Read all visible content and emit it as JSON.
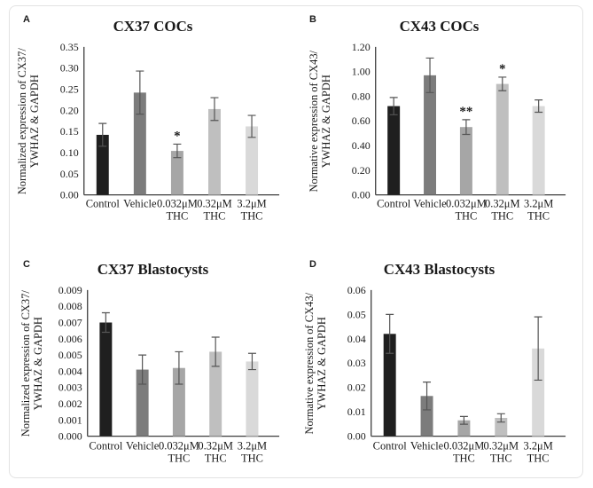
{
  "figure": {
    "background": "#ffffff",
    "border_color": "#e3e3e3",
    "axis_color": "#3d3d3d",
    "error_bar_color": "#555555",
    "text_color": "#1a1a1a",
    "bar_colors": [
      "#1f1f1f",
      "#7c7c7c",
      "#a6a6a6",
      "#bfbfbf",
      "#d9d9d9"
    ]
  },
  "chart_data": [
    {
      "type": "bar",
      "panel": "A",
      "title": "CX37 COCs",
      "ylabel": "Normalized expression of CX37/ YWHAZ & GAPDH",
      "ylabel_line1": "Normalized expression of CX37/",
      "ylabel_line2": "YWHAZ & GAPDH",
      "categories": [
        "Control",
        "Vehicle",
        "0.032μM THC",
        "0.32μM THC",
        "3.2μM THC"
      ],
      "xtick_line1": [
        "Control",
        "Vehicle",
        "0.032μM",
        "0.32μM",
        "3.2μM"
      ],
      "xtick_line2": [
        "",
        "",
        "THC",
        "THC",
        "THC"
      ],
      "values": [
        0.142,
        0.242,
        0.104,
        0.203,
        0.162
      ],
      "errors": [
        0.027,
        0.051,
        0.016,
        0.027,
        0.026
      ],
      "significance": [
        "",
        "",
        "*",
        "",
        ""
      ],
      "ylim": [
        0,
        0.35
      ],
      "ytick_step": 0.05,
      "ytick_decimals": 2,
      "grid": false,
      "legend": null
    },
    {
      "type": "bar",
      "panel": "B",
      "title": "CX43 COCs",
      "ylabel": "Normative expression of CX43/ YWHAZ & GAPDH",
      "ylabel_line1": "Normative expression of CX43/",
      "ylabel_line2": "YWHAZ & GAPDH",
      "categories": [
        "Control",
        "Vehicle",
        "0.032μM THC",
        "0.32μM THC",
        "3.2μM THC"
      ],
      "xtick_line1": [
        "Control",
        "Vehicle",
        "0.032μM",
        "0.32μM",
        "3.2μM"
      ],
      "xtick_line2": [
        "",
        "",
        "THC",
        "THC",
        "THC"
      ],
      "values": [
        0.72,
        0.97,
        0.55,
        0.9,
        0.72
      ],
      "errors": [
        0.07,
        0.14,
        0.06,
        0.055,
        0.05
      ],
      "significance": [
        "",
        "",
        "**",
        "*",
        ""
      ],
      "ylim": [
        0,
        1.2
      ],
      "ytick_step": 0.2,
      "ytick_decimals": 2,
      "grid": false,
      "legend": null
    },
    {
      "type": "bar",
      "panel": "C",
      "title": "CX37 Blastocysts",
      "ylabel": "Normalized expression of CX37/ YWHAZ & GAPDH",
      "ylabel_line1": "Normalized expression of CX37/",
      "ylabel_line2": "YWHAZ & GAPDH",
      "categories": [
        "Control",
        "Vehicle",
        "0.032μM THC",
        "0.32μM THC",
        "3.2μM THC"
      ],
      "xtick_line1": [
        "Control",
        "Vehicle",
        "0.032μM",
        "0.32μM",
        "3.2μM"
      ],
      "xtick_line2": [
        "",
        "",
        "THC",
        "THC",
        "THC"
      ],
      "values": [
        0.007,
        0.0041,
        0.0042,
        0.0052,
        0.0046
      ],
      "errors": [
        0.0006,
        0.0009,
        0.001,
        0.0009,
        0.0005
      ],
      "significance": [
        "",
        "",
        "",
        "",
        ""
      ],
      "ylim": [
        0,
        0.009
      ],
      "ytick_step": 0.001,
      "ytick_decimals": 3,
      "grid": false,
      "legend": null
    },
    {
      "type": "bar",
      "panel": "D",
      "title": "CX43 Blastocysts",
      "ylabel": "Normative expression of CX43/ YWHAZ & GAPDH",
      "ylabel_line1": "Normative expression of CX43/",
      "ylabel_line2": "YWHAZ & GAPDH",
      "categories": [
        "Control",
        "Vehicle",
        "0.032μM THC",
        "0.32μM THC",
        "3.2μM THC"
      ],
      "xtick_line1": [
        "Control",
        "Vehicle",
        "0.032μM",
        "0.32μM",
        "3.2μM"
      ],
      "xtick_line2": [
        "",
        "",
        "THC",
        "THC",
        "THC"
      ],
      "values": [
        0.042,
        0.0165,
        0.0065,
        0.0075,
        0.036
      ],
      "errors": [
        0.008,
        0.0057,
        0.0016,
        0.0017,
        0.013
      ],
      "significance": [
        "",
        "",
        "",
        "",
        ""
      ],
      "ylim": [
        0,
        0.06
      ],
      "ytick_step": 0.01,
      "ytick_decimals": 2,
      "grid": false,
      "legend": null
    }
  ]
}
